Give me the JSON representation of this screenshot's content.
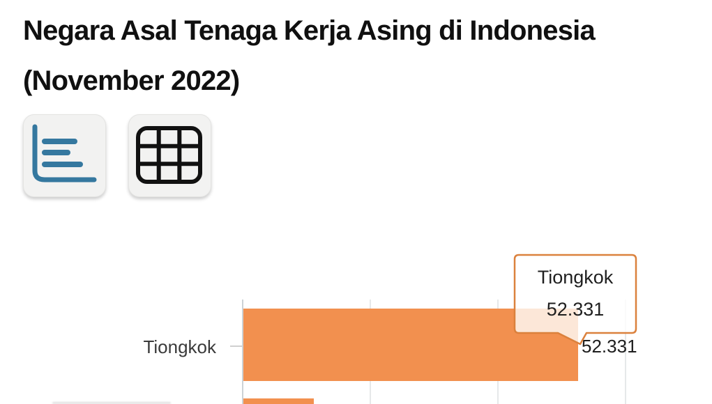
{
  "header": {
    "title_line1": "Negara Asal Tenaga Kerja Asing di Indonesia",
    "title_line2": "(November 2022)"
  },
  "toolbar": {
    "chart_view_icon": "horizontal-bar-chart-icon",
    "table_view_icon": "table-grid-icon"
  },
  "colors": {
    "bar": "#F2904F",
    "tooltip_border": "#DB813D",
    "icon_blue": "#35789F",
    "axis": "#CCD2D6",
    "gridline": "#E6E8E9"
  },
  "tooltip": {
    "label": "Tiongkok",
    "value": "52.331"
  },
  "chart_data": {
    "type": "bar",
    "orientation": "horizontal",
    "title": "Negara Asal Tenaga Kerja Asing di Indonesia (November 2022)",
    "categories": [
      "Tiongkok"
    ],
    "values": [
      52331
    ],
    "value_labels": [
      "52.331"
    ],
    "xlim_estimate": [
      0,
      72000
    ],
    "gridline_interval_estimate": 20000,
    "grid": "vertical-lines-on",
    "legend": "none",
    "partial_next_bar_value_estimate": 11000
  }
}
